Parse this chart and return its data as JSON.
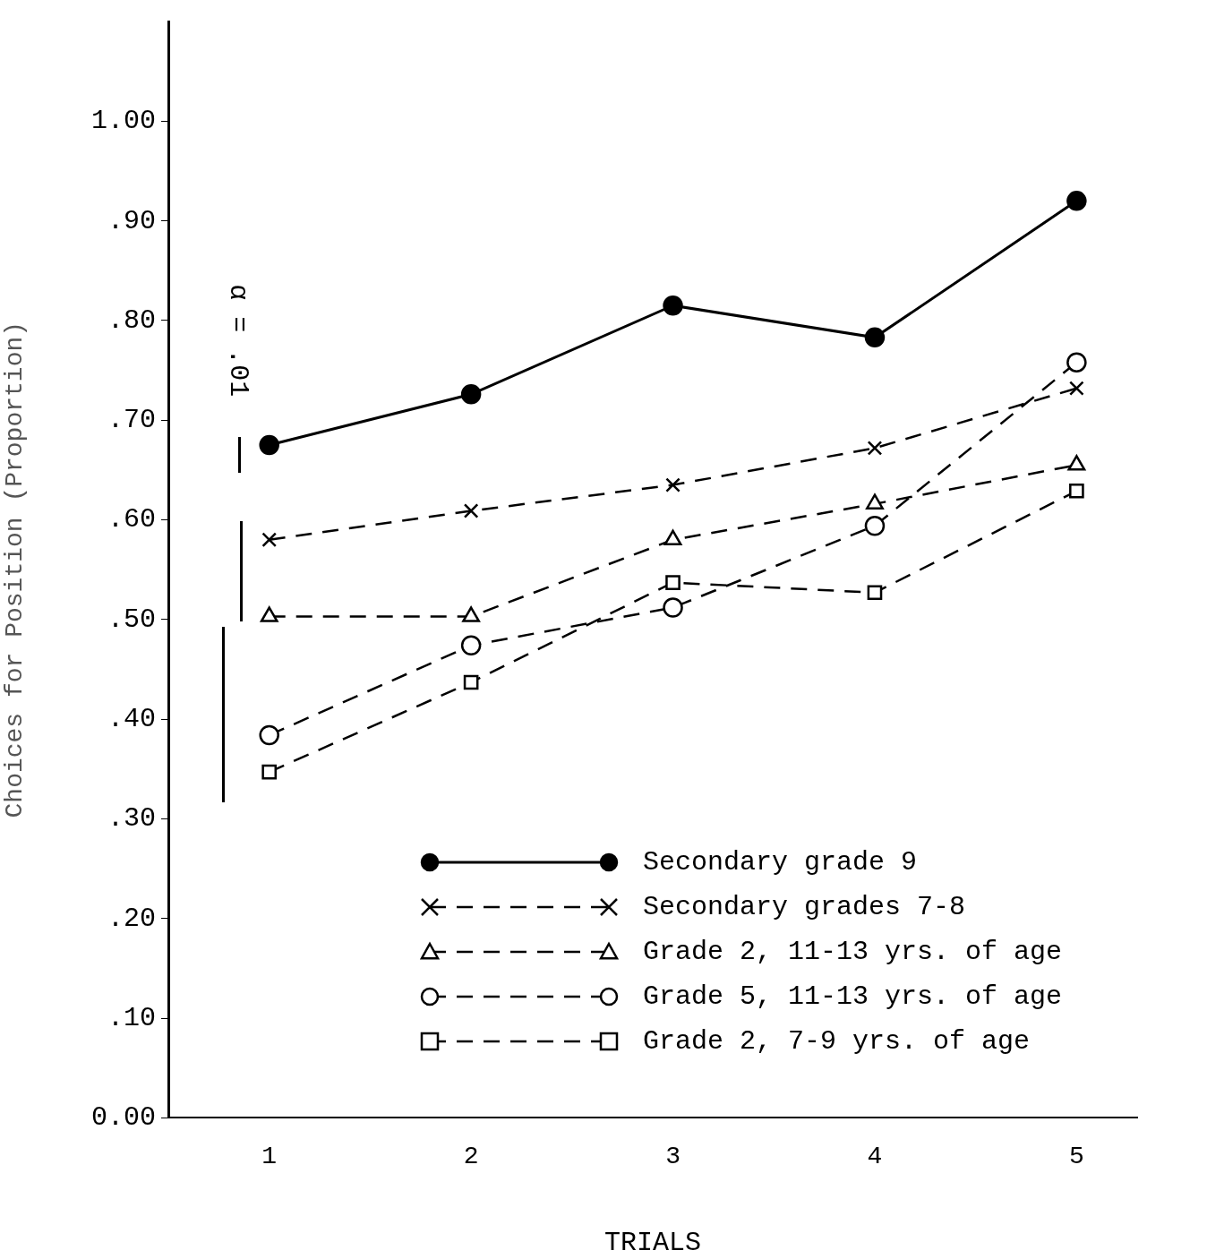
{
  "chart_data": {
    "type": "line",
    "xlabel": "TRIALS",
    "ylabel": "Choices for Position (Proportion)",
    "x": [
      1,
      2,
      3,
      4,
      5
    ],
    "xlim": [
      0.5,
      5.3
    ],
    "xticks": [
      1,
      2,
      3,
      4,
      5
    ],
    "ylim": [
      0,
      1.1
    ],
    "yticks": [
      {
        "value": 0,
        "label": "0.00"
      },
      {
        "value": 0.1,
        "label": ".10"
      },
      {
        "value": 0.2,
        "label": ".20"
      },
      {
        "value": 0.3,
        "label": ".30"
      },
      {
        "value": 0.4,
        "label": ".40"
      },
      {
        "value": 0.5,
        "label": ".50"
      },
      {
        "value": 0.6,
        "label": ".60"
      },
      {
        "value": 0.7,
        "label": ".70"
      },
      {
        "value": 0.8,
        "label": ".80"
      },
      {
        "value": 0.9,
        "label": ".90"
      },
      {
        "value": 1,
        "label": "1.00"
      }
    ],
    "grid": false,
    "legend": "bottom right",
    "annotations": [
      "α = .01"
    ],
    "series": [
      {
        "name": "Secondary grade 9",
        "color": "#000000",
        "marker": "circle",
        "line_style": "solid",
        "values": [
          0.675,
          0.726,
          0.815,
          0.783,
          0.92
        ]
      },
      {
        "name": "Secondary grades 7-8",
        "color": "#000000",
        "marker": "cross",
        "line_style": "dashed",
        "values": [
          0.58,
          0.609,
          0.635,
          0.672,
          0.732
        ]
      },
      {
        "name": "Grade 2, 11-13 yrs. of age",
        "color": "#000000",
        "marker": "triangle",
        "line_style": "dashed",
        "values": [
          0.503,
          0.503,
          0.58,
          0.616,
          0.655
        ]
      },
      {
        "name": "Grade 5, 11-13 yrs. of age",
        "color": "#000000",
        "marker": "circle",
        "line_style": "dashed",
        "values": [
          0.384,
          0.474,
          0.512,
          0.594,
          0.758
        ]
      },
      {
        "name": "Grade 2, 7-9 yrs. of age",
        "color": "#000000",
        "marker": "square",
        "line_style": "dashed",
        "values": [
          0.347,
          0.437,
          0.537,
          0.527,
          0.629
        ]
      }
    ]
  }
}
